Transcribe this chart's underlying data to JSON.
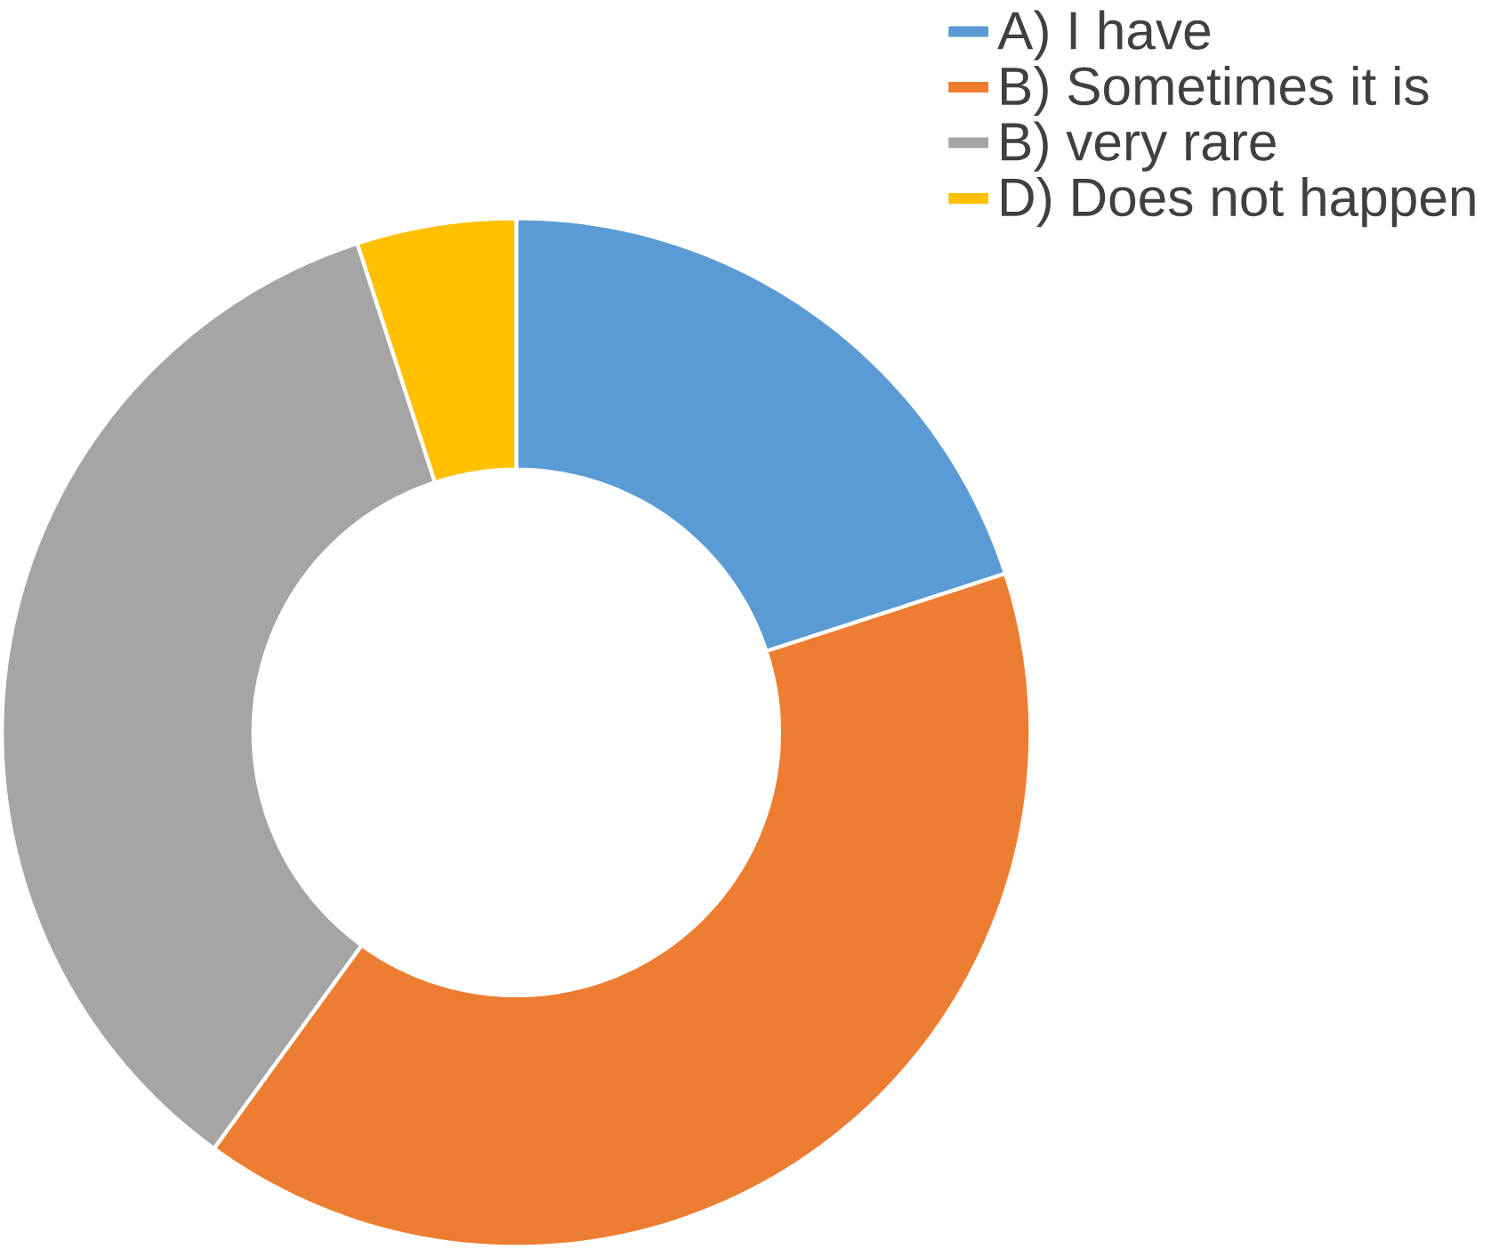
{
  "chart_data": {
    "type": "donut",
    "categories": [
      "A) I have",
      "B) Sometimes it is",
      "B) very rare",
      "D) Does not happen"
    ],
    "values": [
      20,
      40,
      35,
      5
    ],
    "colors": [
      "#5b9bd5",
      "#ed7d31",
      "#a5a5a5",
      "#ffc000"
    ],
    "legend": "top right"
  }
}
